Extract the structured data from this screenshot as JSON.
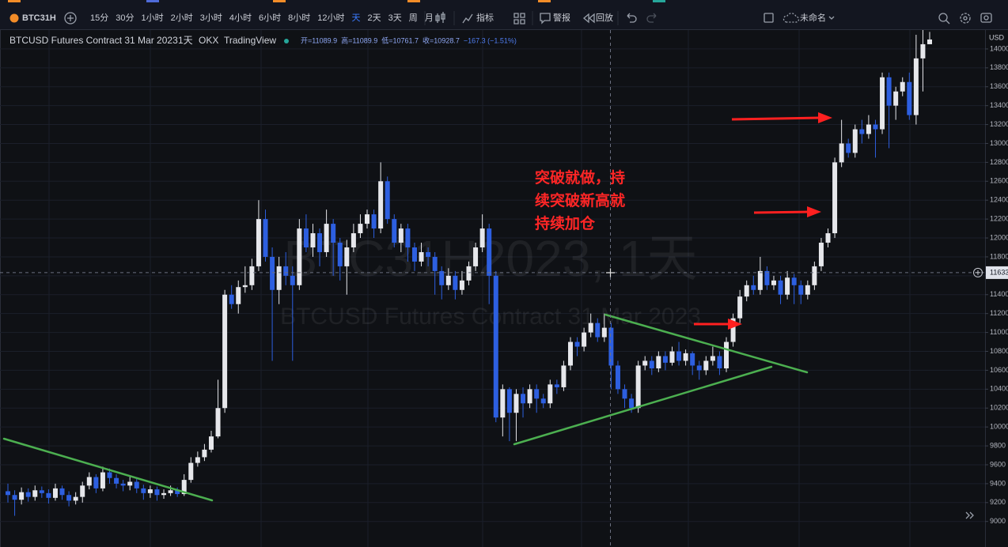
{
  "toolbar": {
    "symbol": "BTC31H",
    "intervals": [
      "15分",
      "30分",
      "1小时",
      "2小时",
      "3小时",
      "4小时",
      "6小时",
      "8小时",
      "12小时",
      "天",
      "2天",
      "3天",
      "周",
      "月"
    ],
    "indicators": "指标",
    "alert": "警报",
    "replay": "回放",
    "layout_name": "未命名"
  },
  "legend": {
    "name": "BTCUSD Futures Contract 31 Mar 2023",
    "interval": "1天",
    "exchange": "OKX",
    "source": "TradingView",
    "ohlc": [
      "开=11089.9",
      "高=11089.9",
      "低=10761.7",
      "收=10928.7",
      "−167.3 (−1.51%)"
    ]
  },
  "watermark": {
    "line1": "BTC31H2023, 1天",
    "line2": "BTCUSD Futures Contract 31 Mar 2023"
  },
  "annotation": [
    "突破就做，持",
    "续突破新高就",
    "持续加仓"
  ],
  "chart_data": {
    "type": "candlestick",
    "currency": "USD",
    "up_color": "#e6e7eb",
    "down_color": "#2d5fe0",
    "ylim": [
      8730,
      14200
    ],
    "yticks": [
      9000,
      9200,
      9400,
      9600,
      9800,
      10000,
      10200,
      10400,
      10600,
      10800,
      11000,
      11200,
      11400,
      11600,
      11800,
      12000,
      12200,
      12400,
      12600,
      12800,
      13000,
      13200,
      13400,
      13600,
      13800,
      14000
    ],
    "crosshair_price": 11633,
    "ohlc": [
      [
        9320,
        9400,
        9200,
        9280
      ],
      [
        9280,
        9330,
        9060,
        9230
      ],
      [
        9230,
        9360,
        9180,
        9310
      ],
      [
        9310,
        9350,
        9210,
        9260
      ],
      [
        9260,
        9380,
        9220,
        9330
      ],
      [
        9330,
        9370,
        9250,
        9300
      ],
      [
        9300,
        9340,
        9190,
        9250
      ],
      [
        9250,
        9400,
        9220,
        9350
      ],
      [
        9350,
        9380,
        9230,
        9280
      ],
      [
        9280,
        9320,
        9160,
        9220
      ],
      [
        9220,
        9310,
        9180,
        9260
      ],
      [
        9260,
        9420,
        9200,
        9380
      ],
      [
        9380,
        9520,
        9340,
        9470
      ],
      [
        9470,
        9500,
        9300,
        9350
      ],
      [
        9350,
        9580,
        9320,
        9520
      ],
      [
        9520,
        9560,
        9400,
        9460
      ],
      [
        9460,
        9500,
        9350,
        9400
      ],
      [
        9400,
        9440,
        9320,
        9380
      ],
      [
        9380,
        9470,
        9330,
        9420
      ],
      [
        9420,
        9450,
        9300,
        9350
      ],
      [
        9350,
        9390,
        9230,
        9300
      ],
      [
        9300,
        9380,
        9250,
        9340
      ],
      [
        9340,
        9370,
        9220,
        9280
      ],
      [
        9280,
        9340,
        9240,
        9300
      ],
      [
        9300,
        9380,
        9270,
        9330
      ],
      [
        9330,
        9360,
        9260,
        9290
      ],
      [
        9290,
        9500,
        9270,
        9440
      ],
      [
        9440,
        9680,
        9410,
        9620
      ],
      [
        9620,
        9740,
        9580,
        9680
      ],
      [
        9680,
        9820,
        9640,
        9760
      ],
      [
        9760,
        9960,
        9730,
        9900
      ],
      [
        9900,
        10500,
        9880,
        10200
      ],
      [
        10200,
        11450,
        10150,
        11400
      ],
      [
        11400,
        11500,
        11250,
        11300
      ],
      [
        11300,
        11550,
        11200,
        11480
      ],
      [
        11480,
        11700,
        11420,
        11500
      ],
      [
        11500,
        11780,
        11450,
        11700
      ],
      [
        11700,
        12400,
        11650,
        12200
      ],
      [
        12200,
        12300,
        11750,
        11800
      ],
      [
        11800,
        11900,
        10700,
        11450
      ],
      [
        11450,
        11800,
        11300,
        11700
      ],
      [
        11700,
        11850,
        11500,
        11600
      ],
      [
        11600,
        11700,
        10700,
        11500
      ],
      [
        11500,
        12200,
        11450,
        12100
      ],
      [
        12100,
        12250,
        11850,
        11900
      ],
      [
        11900,
        12150,
        11800,
        12050
      ],
      [
        12050,
        12100,
        11700,
        11850
      ],
      [
        11850,
        12300,
        11800,
        12150
      ],
      [
        12150,
        12200,
        11600,
        11950
      ],
      [
        11950,
        12000,
        11550,
        11700
      ],
      [
        11700,
        11980,
        11400,
        11900
      ],
      [
        11900,
        12150,
        11850,
        12050
      ],
      [
        12050,
        12250,
        12000,
        12150
      ],
      [
        12150,
        12300,
        12100,
        12250
      ],
      [
        12250,
        12300,
        12000,
        12100
      ],
      [
        12100,
        12800,
        12050,
        12600
      ],
      [
        12600,
        12650,
        12150,
        12200
      ],
      [
        12200,
        12250,
        11900,
        11950
      ],
      [
        11950,
        12150,
        11850,
        12100
      ],
      [
        12100,
        12150,
        11750,
        11900
      ],
      [
        11900,
        11950,
        11650,
        11750
      ],
      [
        11750,
        11950,
        11700,
        11850
      ],
      [
        11850,
        11900,
        11700,
        11800
      ],
      [
        11800,
        11850,
        11400,
        11650
      ],
      [
        11650,
        11700,
        11350,
        11500
      ],
      [
        11500,
        11680,
        11450,
        11600
      ],
      [
        11600,
        11650,
        11350,
        11450
      ],
      [
        11450,
        11650,
        11400,
        11550
      ],
      [
        11550,
        11750,
        11500,
        11700
      ],
      [
        11700,
        11950,
        11650,
        11900
      ],
      [
        11900,
        12250,
        11850,
        12100
      ],
      [
        12100,
        12150,
        11300,
        11600
      ],
      [
        11600,
        11650,
        10050,
        10100
      ],
      [
        10100,
        10450,
        9900,
        10400
      ],
      [
        10400,
        10420,
        9850,
        10150
      ],
      [
        10150,
        10400,
        9850,
        10350
      ],
      [
        10350,
        10420,
        10100,
        10250
      ],
      [
        10250,
        10450,
        10200,
        10400
      ],
      [
        10400,
        10450,
        10150,
        10300
      ],
      [
        10300,
        10350,
        10200,
        10250
      ],
      [
        10250,
        10500,
        10200,
        10450
      ],
      [
        10450,
        10500,
        10350,
        10420
      ],
      [
        10420,
        10700,
        10380,
        10650
      ],
      [
        10650,
        10950,
        10600,
        10900
      ],
      [
        10900,
        10950,
        10750,
        10850
      ],
      [
        10850,
        11050,
        10800,
        11000
      ],
      [
        11000,
        11200,
        10950,
        11100
      ],
      [
        11100,
        11150,
        10900,
        10950
      ],
      [
        10950,
        11200,
        10900,
        11050
      ],
      [
        11050,
        11100,
        10400,
        10650
      ],
      [
        10650,
        10700,
        10350,
        10400
      ],
      [
        10400,
        10450,
        10200,
        10300
      ],
      [
        10300,
        10350,
        10150,
        10200
      ],
      [
        10200,
        10700,
        10150,
        10650
      ],
      [
        10650,
        10750,
        10600,
        10700
      ],
      [
        10700,
        10750,
        10550,
        10620
      ],
      [
        10620,
        10800,
        10580,
        10750
      ],
      [
        10750,
        10800,
        10600,
        10680
      ],
      [
        10680,
        10850,
        10650,
        10800
      ],
      [
        10800,
        10900,
        10650,
        10700
      ],
      [
        10700,
        10820,
        10650,
        10780
      ],
      [
        10780,
        10800,
        10550,
        10650
      ],
      [
        10650,
        10700,
        10500,
        10600
      ],
      [
        10600,
        10750,
        10550,
        10700
      ],
      [
        10700,
        10850,
        10650,
        10750
      ],
      [
        10750,
        10800,
        10550,
        10620
      ],
      [
        10620,
        10950,
        10580,
        10900
      ],
      [
        10900,
        11200,
        10850,
        11150
      ],
      [
        11150,
        11450,
        11100,
        11380
      ],
      [
        11380,
        11550,
        11330,
        11500
      ],
      [
        11500,
        11600,
        11400,
        11450
      ],
      [
        11450,
        11800,
        11400,
        11650
      ],
      [
        11650,
        11700,
        11450,
        11500
      ],
      [
        11500,
        11600,
        11450,
        11550
      ],
      [
        11550,
        11600,
        11300,
        11400
      ],
      [
        11400,
        11650,
        11350,
        11580
      ],
      [
        11580,
        11620,
        11300,
        11500
      ],
      [
        11500,
        11550,
        11300,
        11400
      ],
      [
        11400,
        11550,
        11350,
        11500
      ],
      [
        11500,
        11750,
        11450,
        11700
      ],
      [
        11700,
        12000,
        11650,
        11950
      ],
      [
        11950,
        12100,
        11900,
        12050
      ],
      [
        12050,
        12850,
        12000,
        12800
      ],
      [
        12800,
        13250,
        12750,
        13000
      ],
      [
        13000,
        13050,
        12850,
        12900
      ],
      [
        12900,
        13200,
        12850,
        13150
      ],
      [
        13150,
        13250,
        13000,
        13100
      ],
      [
        13100,
        13300,
        13050,
        13200
      ],
      [
        13200,
        13250,
        12850,
        13150
      ],
      [
        13150,
        13750,
        13100,
        13700
      ],
      [
        13700,
        13750,
        12950,
        13400
      ],
      [
        13400,
        13600,
        13250,
        13550
      ],
      [
        13550,
        13700,
        13500,
        13650
      ],
      [
        13650,
        13750,
        13250,
        13300
      ],
      [
        13300,
        14150,
        13200,
        13900
      ],
      [
        13900,
        14200,
        13550,
        14050
      ],
      [
        14050,
        14180,
        14050,
        14100
      ]
    ]
  }
}
